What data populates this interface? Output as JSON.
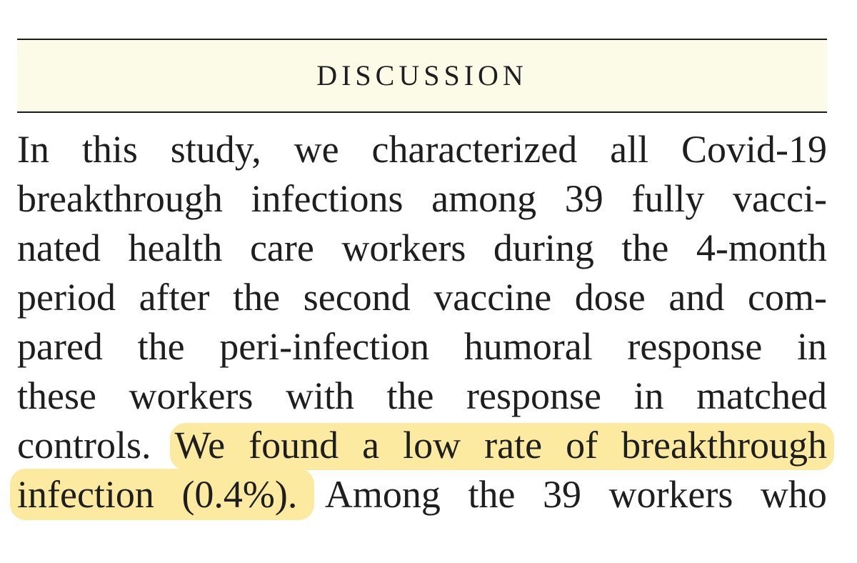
{
  "section": {
    "heading": "DISCUSSION"
  },
  "paragraph": {
    "lines": [
      "In this study, we characterized all Covid-19",
      "breakthrough infections among 39 fully vacci-",
      "nated health care workers during the 4-month",
      "period after the second vaccine dose and com-",
      "pared the peri-infection humoral response in",
      "these workers with the response in matched",
      "controls. We found a low rate of breakthrough",
      "infection (0.4%). Among the 39 workers who"
    ],
    "highlighted_text": "We found a low rate of breakthrough infection (0.4%)."
  },
  "colors": {
    "heading_band": "#fcfbe7",
    "highlight": "#fbeaa0",
    "text": "#1e1e1e",
    "rule": "#1a1a1a"
  }
}
